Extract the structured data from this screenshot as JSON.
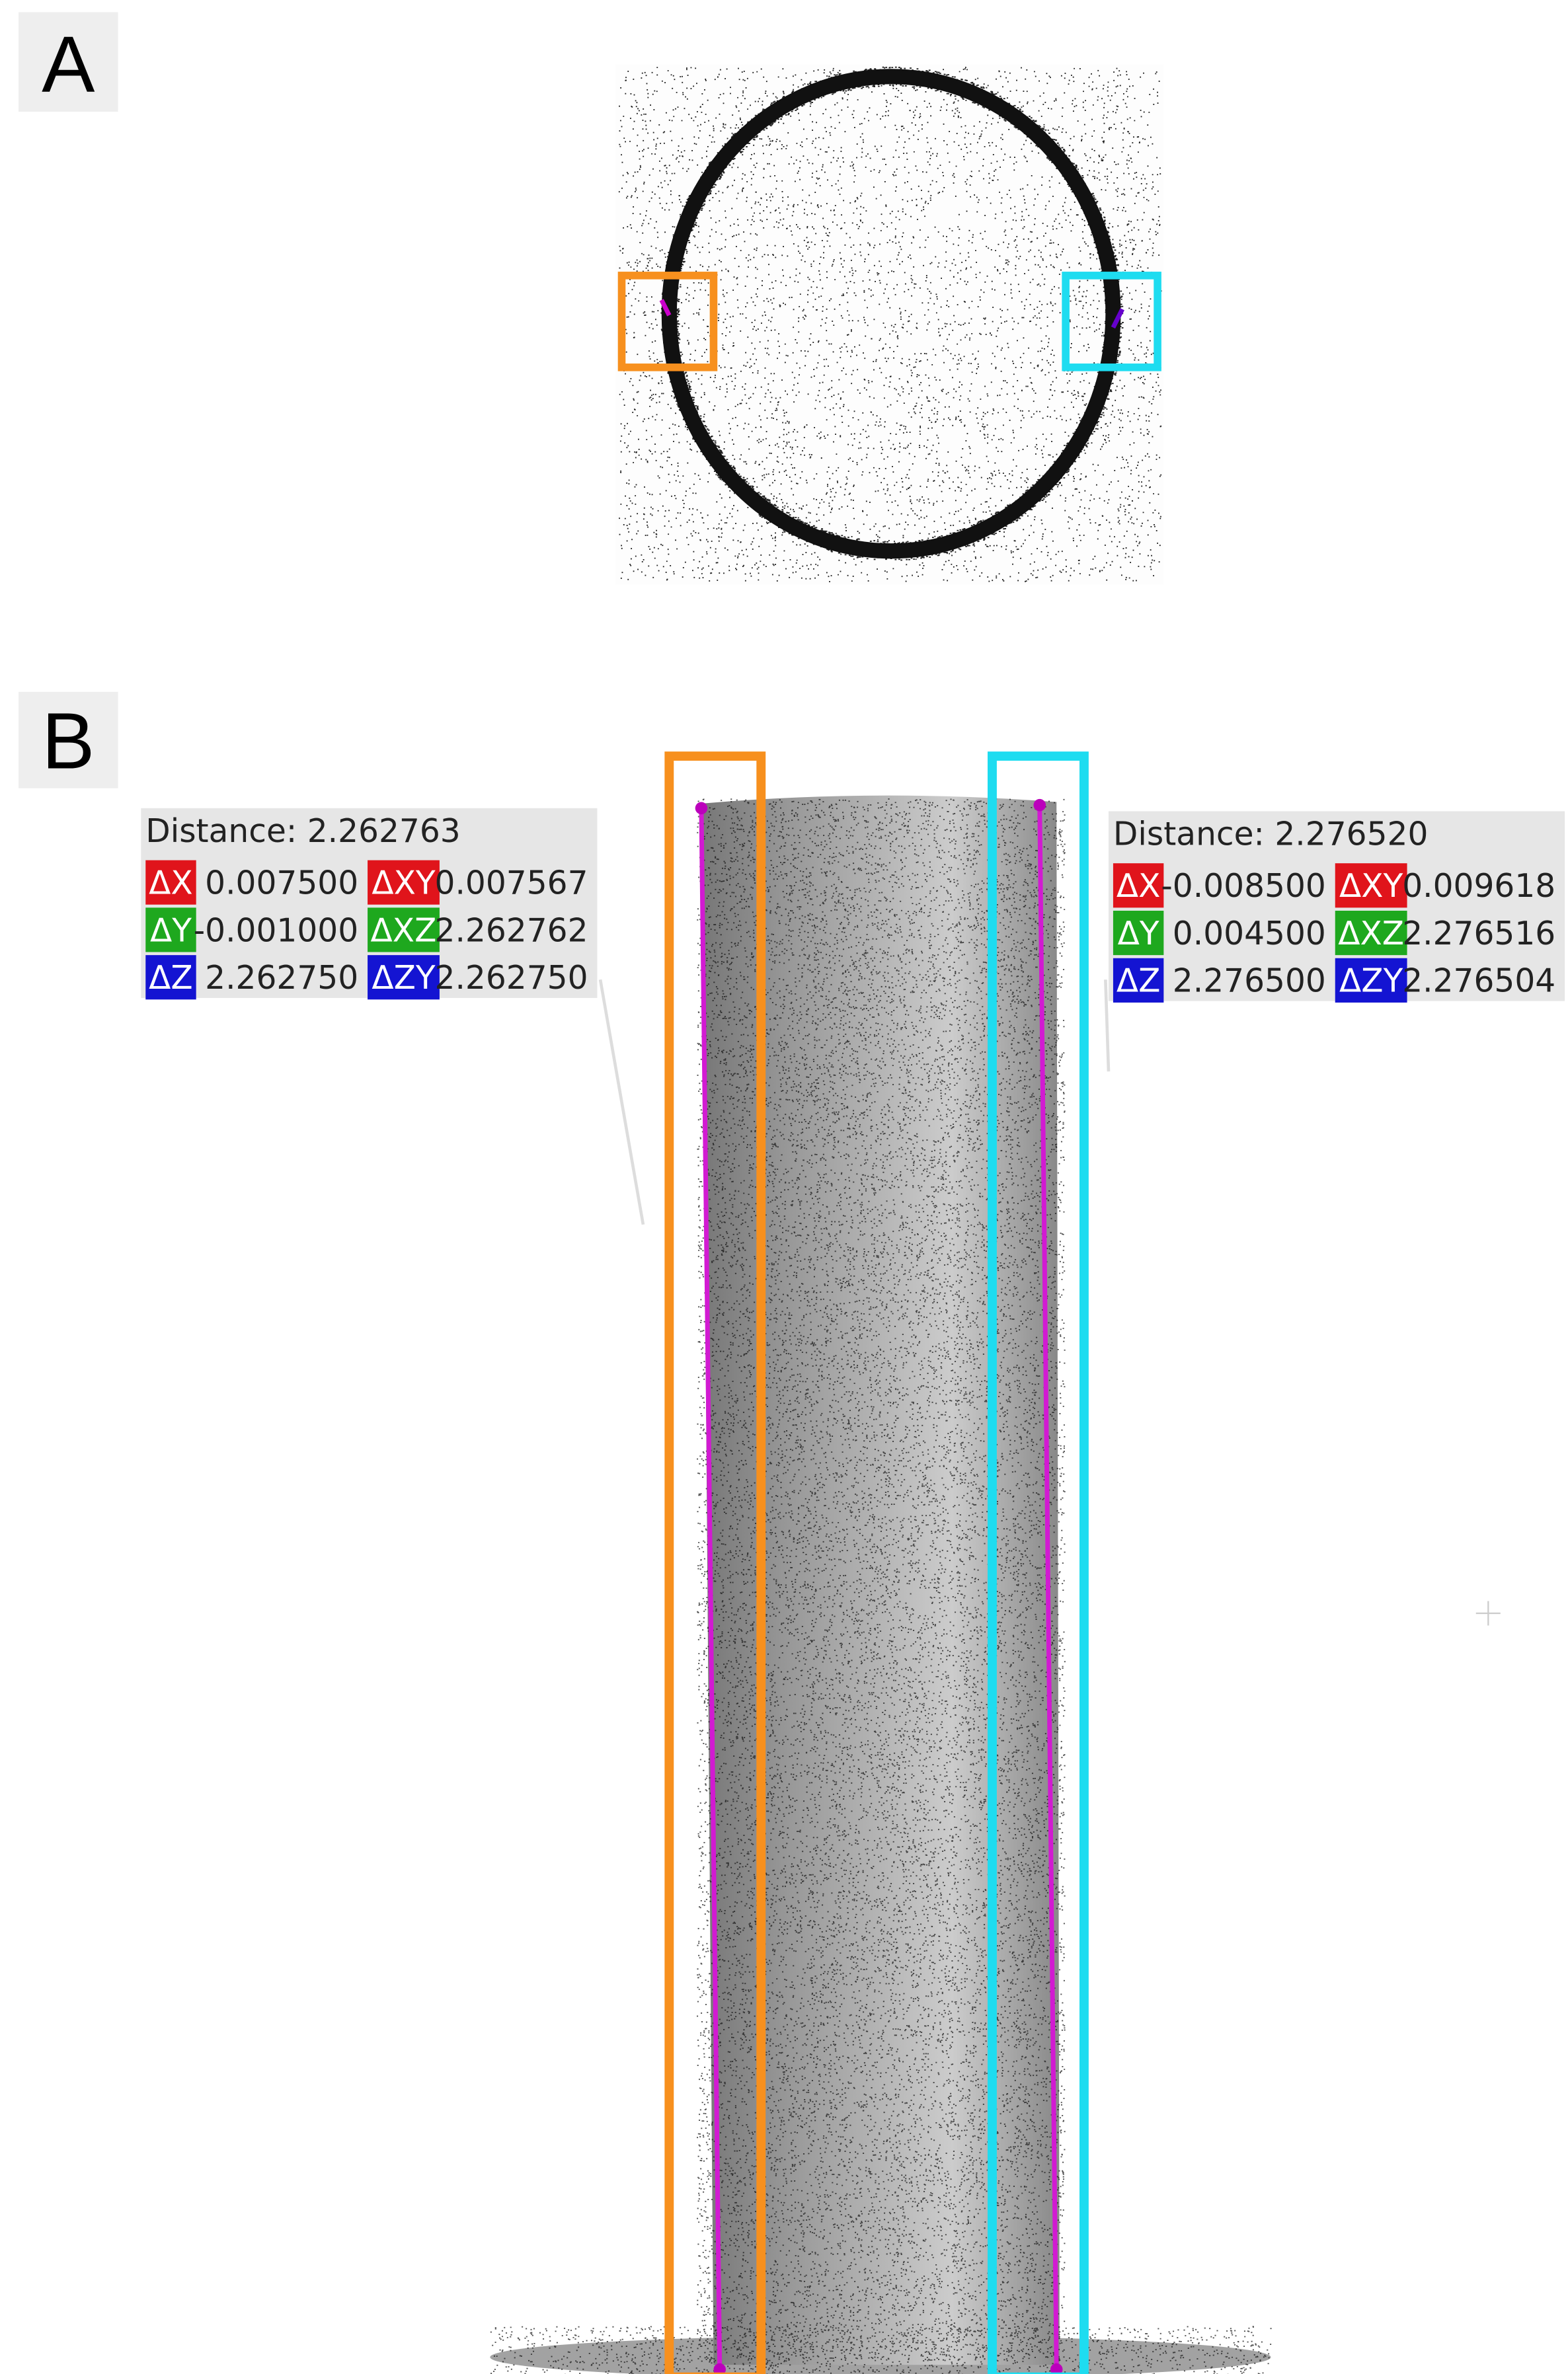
{
  "panels": [
    {
      "label": "A"
    },
    {
      "label": "B"
    }
  ],
  "measurements": [
    {
      "distance": "Distance: 2.262763",
      "rows": [
        [
          {
            "label": "ΔX",
            "value": "0.007500"
          },
          {
            "label": "ΔXY",
            "value": "0.007567"
          }
        ],
        [
          {
            "label": "ΔY",
            "value": "-0.001000"
          },
          {
            "label": "ΔXZ",
            "value": "2.262762"
          }
        ],
        [
          {
            "label": "ΔZ",
            "value": "2.262750"
          },
          {
            "label": "ΔZY",
            "value": "2.262750"
          }
        ]
      ]
    },
    {
      "distance": "Distance: 2.276520",
      "rows": [
        [
          {
            "label": "ΔX",
            "value": "-0.008500"
          },
          {
            "label": "ΔXY",
            "value": "0.009618"
          }
        ],
        [
          {
            "label": "ΔY",
            "value": "0.004500"
          },
          {
            "label": "ΔXZ",
            "value": "2.276516"
          }
        ],
        [
          {
            "label": "ΔZ",
            "value": "2.276500"
          },
          {
            "label": "ΔZY",
            "value": "2.276504"
          }
        ]
      ]
    }
  ]
}
